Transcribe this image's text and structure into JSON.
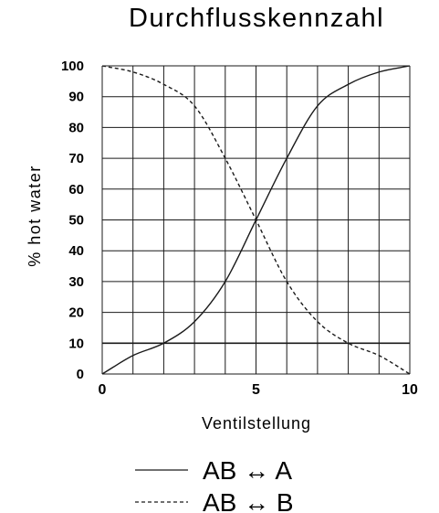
{
  "chart_data": {
    "type": "line",
    "title": "Durchflusskennzahl",
    "xlabel": "Ventilstellung",
    "ylabel": "% hot water",
    "xlim": [
      0,
      10
    ],
    "ylim": [
      0,
      100
    ],
    "grid": true,
    "x_ticks": [
      "0",
      "5",
      "10"
    ],
    "y_ticks": [
      "0",
      "10",
      "20",
      "30",
      "40",
      "50",
      "60",
      "70",
      "80",
      "90",
      "100"
    ],
    "legend_position": "bottom",
    "series": [
      {
        "name": "AB ↔ A",
        "style": "solid",
        "x": [
          0,
          1,
          2,
          3,
          4,
          5,
          6,
          7,
          8,
          9,
          10
        ],
        "y": [
          0,
          6,
          10,
          17,
          30,
          50,
          70,
          87,
          94,
          98,
          100
        ]
      },
      {
        "name": "AB ↔ B",
        "style": "dashed",
        "x": [
          0,
          1,
          2,
          3,
          4,
          5,
          6,
          7,
          8,
          9,
          10
        ],
        "y": [
          100,
          98,
          94,
          87,
          70,
          50,
          30,
          17,
          10,
          6,
          0
        ]
      }
    ]
  }
}
